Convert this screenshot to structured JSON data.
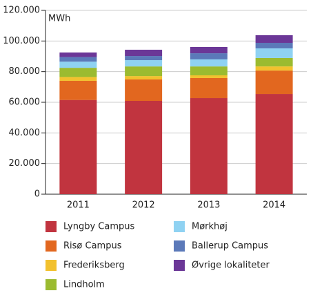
{
  "chart_data": {
    "type": "stacked_bar",
    "y_axis_label": "MWh",
    "categories": [
      "2011",
      "2012",
      "2013",
      "2014"
    ],
    "series": [
      {
        "name": "Lyngby Campus",
        "color": "#c1343f",
        "values": [
          61500,
          60900,
          62700,
          65400
        ]
      },
      {
        "name": "Risø Campus",
        "color": "#e2671f",
        "values": [
          12500,
          14000,
          13100,
          15300
        ]
      },
      {
        "name": "Frederiksberg",
        "color": "#f2c12e",
        "values": [
          2500,
          2200,
          1800,
          2700
        ]
      },
      {
        "name": "Lindholm",
        "color": "#9bbb30",
        "values": [
          6000,
          6300,
          5800,
          5500
        ]
      },
      {
        "name": "Mørkhøj",
        "color": "#8fd2f2",
        "values": [
          4000,
          4100,
          4600,
          6300
        ]
      },
      {
        "name": "Ballerup Campus",
        "color": "#5b79b9",
        "values": [
          3000,
          2700,
          4000,
          3600
        ]
      },
      {
        "name": "Øvrige lokaliteter",
        "color": "#6b3797",
        "values": [
          3000,
          4100,
          4100,
          5000
        ]
      }
    ],
    "ylim": [
      0,
      120000
    ],
    "yticks": [
      0,
      {
        "value": 20000,
        "label": "20.000"
      },
      {
        "value": 40000,
        "label": "40.000"
      },
      {
        "value": 60000,
        "label": "60.000"
      },
      {
        "value": 80000,
        "label": "80.000"
      },
      {
        "value": 100000,
        "label": "100.000"
      },
      {
        "value": 120000,
        "label": "120.000"
      }
    ],
    "grid": true
  }
}
